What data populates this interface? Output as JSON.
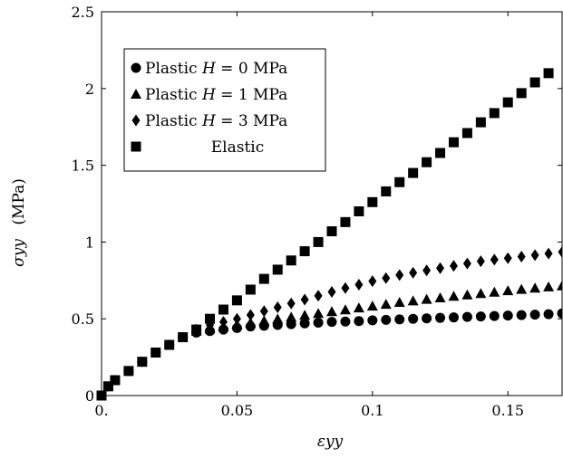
{
  "chart_data": {
    "type": "scatter",
    "title": "",
    "xlabel": "εyy",
    "ylabel_symbol": "σyy",
    "ylabel_unit": "(MPa)",
    "xlim": [
      0,
      0.17
    ],
    "ylim": [
      0,
      2.5
    ],
    "xticks": [
      0,
      0.05,
      0.1,
      0.15
    ],
    "xtick_labels": [
      "0.",
      "0.05",
      "0.1",
      "0.15"
    ],
    "yticks": [
      0,
      0.5,
      1,
      1.5,
      2,
      2.5
    ],
    "ytick_labels": [
      "0",
      "0.5",
      "1",
      "1.5",
      "2",
      "2.5"
    ],
    "grid": false,
    "legend_position": "top-left",
    "series": [
      {
        "name": "Plastic H = 0 MPa",
        "legend_prefix": "Plastic ",
        "legend_math": "H",
        "legend_suffix": " = 0 MPa",
        "marker": "circle",
        "x": [
          0,
          0.0025,
          0.005,
          0.01,
          0.015,
          0.02,
          0.025,
          0.03,
          0.035,
          0.04,
          0.045,
          0.05,
          0.055,
          0.06,
          0.065,
          0.07,
          0.075,
          0.08,
          0.085,
          0.09,
          0.095,
          0.1,
          0.105,
          0.11,
          0.115,
          0.12,
          0.125,
          0.13,
          0.135,
          0.14,
          0.145,
          0.15,
          0.155,
          0.16,
          0.165,
          0.17
        ],
        "y": [
          0,
          0.06,
          0.1,
          0.16,
          0.22,
          0.28,
          0.33,
          0.38,
          0.41,
          0.42,
          0.43,
          0.44,
          0.45,
          0.455,
          0.46,
          0.465,
          0.47,
          0.475,
          0.48,
          0.482,
          0.485,
          0.49,
          0.493,
          0.496,
          0.5,
          0.503,
          0.506,
          0.509,
          0.512,
          0.515,
          0.518,
          0.521,
          0.524,
          0.527,
          0.53,
          0.535
        ]
      },
      {
        "name": "Plastic H = 1 MPa",
        "legend_prefix": "Plastic ",
        "legend_math": "H",
        "legend_suffix": " = 1 MPa",
        "marker": "triangle",
        "x": [
          0.035,
          0.04,
          0.045,
          0.05,
          0.055,
          0.06,
          0.065,
          0.07,
          0.075,
          0.08,
          0.085,
          0.09,
          0.095,
          0.1,
          0.105,
          0.11,
          0.115,
          0.12,
          0.125,
          0.13,
          0.135,
          0.14,
          0.145,
          0.15,
          0.155,
          0.16,
          0.165,
          0.17
        ],
        "y": [
          0.42,
          0.435,
          0.45,
          0.462,
          0.475,
          0.487,
          0.499,
          0.511,
          0.523,
          0.535,
          0.547,
          0.559,
          0.571,
          0.583,
          0.595,
          0.607,
          0.617,
          0.627,
          0.637,
          0.647,
          0.656,
          0.665,
          0.674,
          0.683,
          0.692,
          0.7,
          0.708,
          0.715
        ]
      },
      {
        "name": "Plastic H = 3 MPa",
        "legend_prefix": "Plastic ",
        "legend_math": "H",
        "legend_suffix": " = 3 MPa",
        "marker": "diamond",
        "x": [
          0.035,
          0.04,
          0.045,
          0.05,
          0.055,
          0.06,
          0.065,
          0.07,
          0.075,
          0.08,
          0.085,
          0.09,
          0.095,
          0.1,
          0.105,
          0.11,
          0.115,
          0.12,
          0.125,
          0.13,
          0.135,
          0.14,
          0.145,
          0.15,
          0.155,
          0.16,
          0.165,
          0.17
        ],
        "y": [
          0.43,
          0.46,
          0.48,
          0.5,
          0.525,
          0.55,
          0.575,
          0.6,
          0.625,
          0.65,
          0.675,
          0.7,
          0.722,
          0.745,
          0.765,
          0.785,
          0.8,
          0.815,
          0.83,
          0.845,
          0.86,
          0.875,
          0.885,
          0.895,
          0.905,
          0.915,
          0.925,
          0.935
        ]
      },
      {
        "name": "Elastic",
        "legend_prefix": "",
        "legend_math": "",
        "legend_suffix": "Elastic",
        "marker": "square",
        "x": [
          0,
          0.0025,
          0.005,
          0.01,
          0.015,
          0.02,
          0.025,
          0.03,
          0.035,
          0.04,
          0.045,
          0.05,
          0.055,
          0.06,
          0.065,
          0.07,
          0.075,
          0.08,
          0.085,
          0.09,
          0.095,
          0.1,
          0.105,
          0.11,
          0.115,
          0.12,
          0.125,
          0.13,
          0.135,
          0.14,
          0.145,
          0.15,
          0.155,
          0.16,
          0.165
        ],
        "y": [
          0,
          0.06,
          0.1,
          0.16,
          0.22,
          0.28,
          0.33,
          0.38,
          0.43,
          0.5,
          0.56,
          0.62,
          0.69,
          0.76,
          0.82,
          0.88,
          0.94,
          1.0,
          1.07,
          1.13,
          1.2,
          1.26,
          1.33,
          1.39,
          1.45,
          1.52,
          1.58,
          1.65,
          1.71,
          1.78,
          1.84,
          1.91,
          1.97,
          2.04,
          2.1
        ]
      }
    ]
  }
}
